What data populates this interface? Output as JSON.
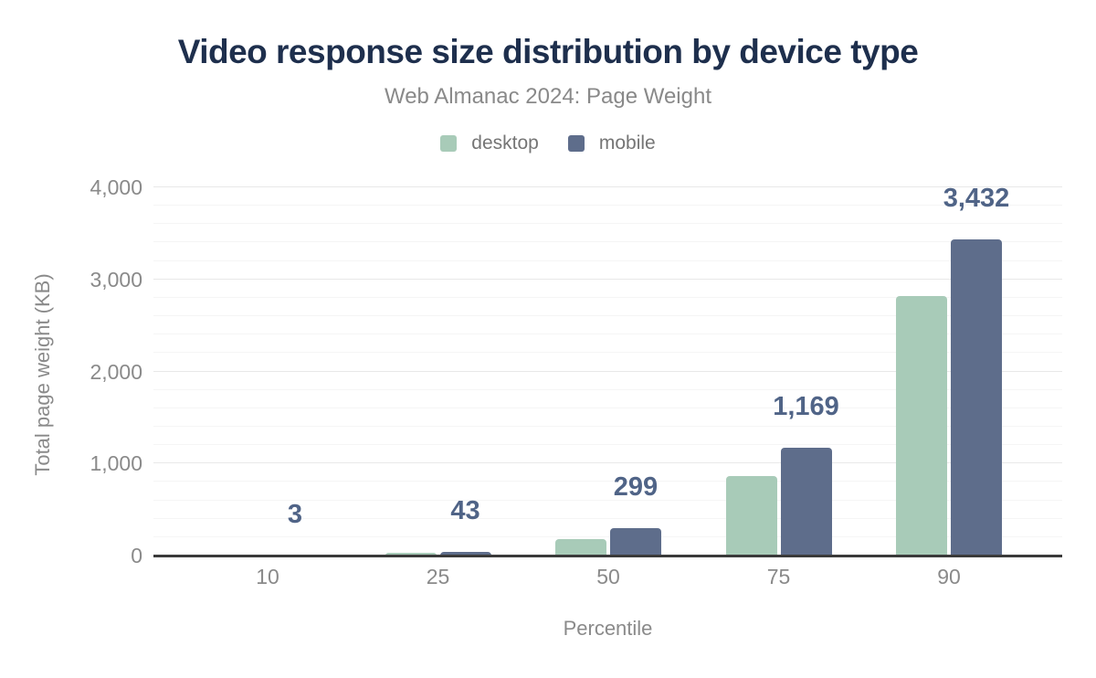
{
  "chart_data": {
    "type": "bar",
    "title": "Video response size distribution by device type",
    "subtitle": "Web Almanac 2024: Page Weight",
    "xlabel": "Percentile",
    "ylabel": "Total page weight (KB)",
    "categories": [
      "10",
      "25",
      "50",
      "75",
      "90"
    ],
    "series": [
      {
        "name": "desktop",
        "color": "#a8cbb8",
        "values": [
          2,
          30,
          180,
          865,
          2820
        ]
      },
      {
        "name": "mobile",
        "color": "#5e6d8b",
        "values": [
          3,
          43,
          299,
          1169,
          3432
        ],
        "data_labels": [
          "3",
          "43",
          "299",
          "1,169",
          "3,432"
        ]
      }
    ],
    "ylim": [
      0,
      4000
    ],
    "yticks": [
      {
        "value": 0,
        "label": "0"
      },
      {
        "value": 1000,
        "label": "1,000"
      },
      {
        "value": 2000,
        "label": "2,000"
      },
      {
        "value": 3000,
        "label": "3,000"
      },
      {
        "value": 4000,
        "label": "4,000"
      }
    ],
    "minor_grid_step": 200,
    "grid": true,
    "legend_position": "top"
  },
  "colors": {
    "background": "#ffffff",
    "title": "#1e2f4d",
    "subtitle": "#898989",
    "axis_text": "#8a8a8a",
    "legend_text": "#757575",
    "data_label": "#506487",
    "axis_line": "#3a3a3a",
    "grid_major": "#e8e8e8",
    "grid_minor": "#f5f5f5"
  }
}
